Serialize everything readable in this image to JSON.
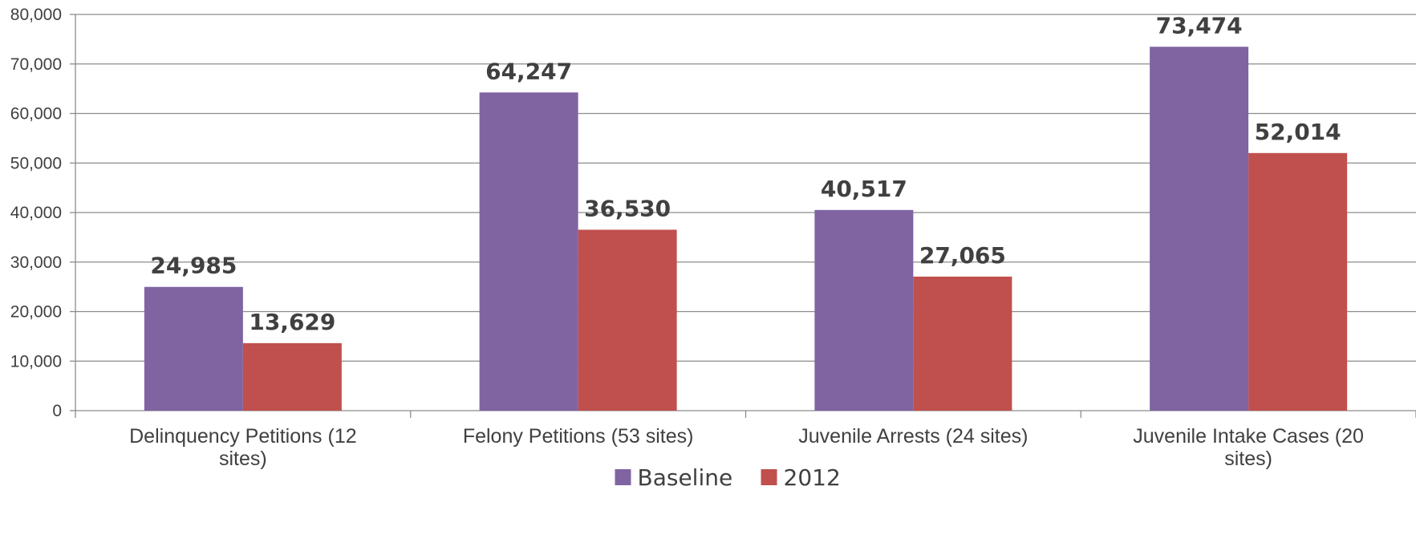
{
  "chart_data": {
    "type": "bar",
    "title": "",
    "xlabel": "",
    "ylabel": "",
    "categories": [
      "Delinquency Petitions (12 sites)",
      "Felony Petitions (53 sites)",
      "Juvenile Arrests (24 sites)",
      "Juvenile Intake Cases (20 sites)"
    ],
    "series": [
      {
        "name": "Baseline",
        "color": "#8064A2",
        "values": [
          24985,
          64247,
          40517,
          73474
        ],
        "labels": [
          "24,985",
          "64,247",
          "40,517",
          "73,474"
        ]
      },
      {
        "name": "2012",
        "color": "#C0504D",
        "values": [
          13629,
          36530,
          27065,
          52014
        ],
        "labels": [
          "13,629",
          "36,530",
          "27,065",
          "52,014"
        ]
      }
    ],
    "ylim": [
      0,
      80000
    ],
    "yticks": [
      0,
      10000,
      20000,
      30000,
      40000,
      50000,
      60000,
      70000,
      80000
    ],
    "ytick_labels": [
      "0",
      "10,000",
      "20,000",
      "30,000",
      "40,000",
      "50,000",
      "60,000",
      "70,000",
      "80,000"
    ],
    "grid": true,
    "legend": "bottom-center"
  }
}
